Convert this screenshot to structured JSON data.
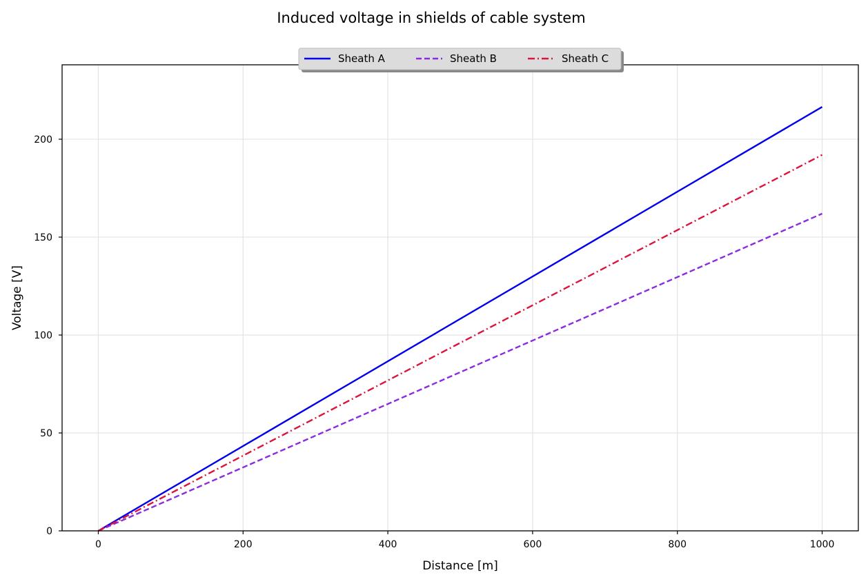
{
  "chart_data": {
    "type": "line",
    "title": "Induced voltage in shields of cable system",
    "xlabel": "Distance [m]",
    "ylabel": "Voltage [V]",
    "xlim": [
      -50,
      1050
    ],
    "ylim": [
      0,
      238
    ],
    "xticks": [
      0,
      200,
      400,
      600,
      800,
      1000
    ],
    "yticks": [
      0,
      50,
      100,
      150,
      200
    ],
    "xtick_labels": [
      "0",
      "200",
      "400",
      "600",
      "800",
      "1000"
    ],
    "ytick_labels": [
      "0",
      "50",
      "100",
      "150",
      "200"
    ],
    "grid": true,
    "legend_position": "top-center",
    "series": [
      {
        "name": "Sheath A",
        "color": "#0000ee",
        "style": "solid",
        "x": [
          0,
          1000
        ],
        "y": [
          0,
          216.5
        ]
      },
      {
        "name": "Sheath B",
        "color": "#8a2be2",
        "style": "dashed",
        "x": [
          0,
          1000
        ],
        "y": [
          0,
          162
        ]
      },
      {
        "name": "Sheath C",
        "color": "#dc143c",
        "style": "dashdot",
        "x": [
          0,
          1000
        ],
        "y": [
          0,
          192
        ]
      }
    ]
  }
}
